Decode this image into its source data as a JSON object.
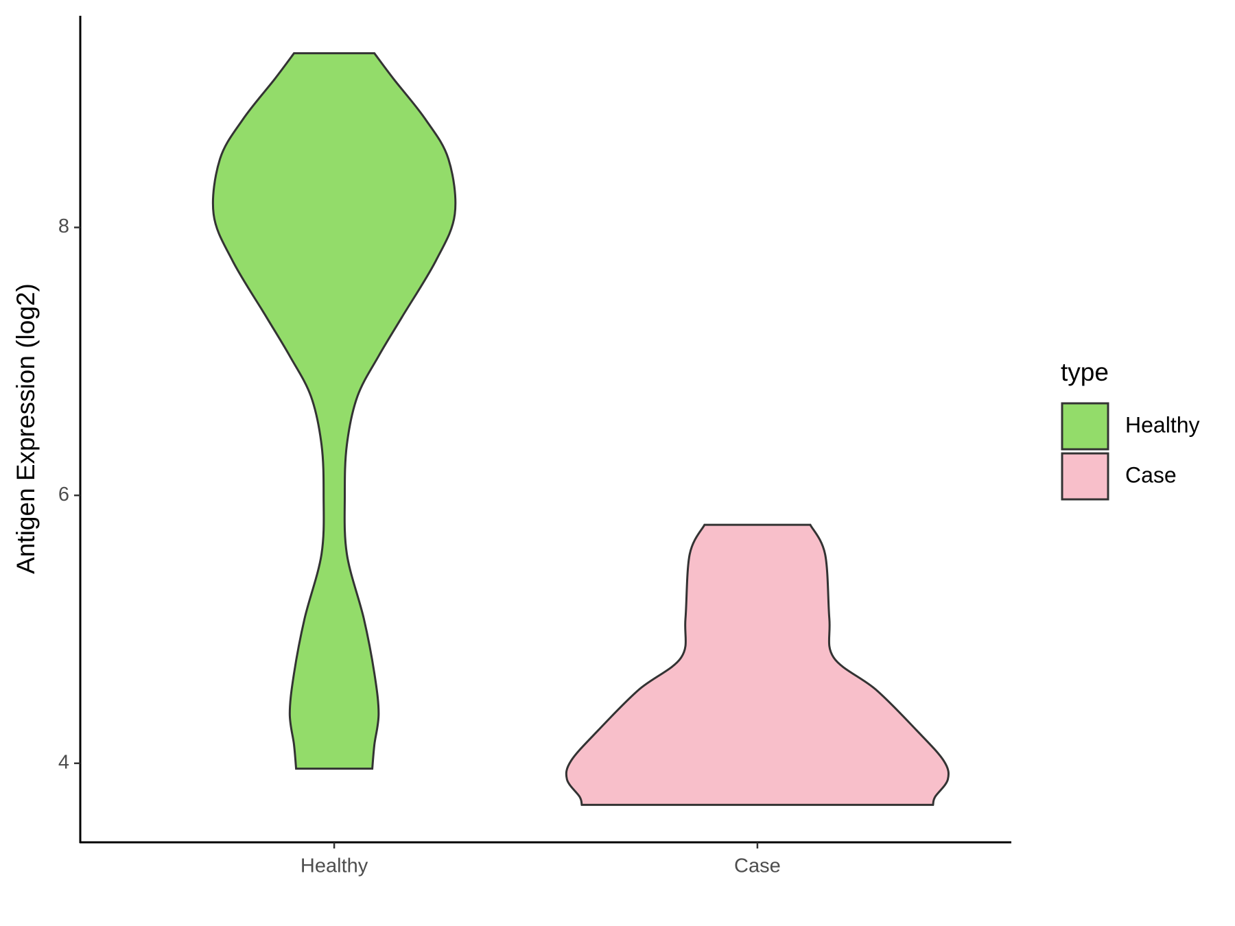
{
  "chart_data": {
    "type": "violin",
    "y_label": "Antigen Expression (log2)",
    "legend_title": "type",
    "categories": [
      "Healthy",
      "Case"
    ],
    "series": [
      {
        "name": "Healthy",
        "color": "#93dc6a",
        "y": [
          9.3,
          9.11,
          8.81,
          8.51,
          8.1,
          7.75,
          7.33,
          7.04,
          6.74,
          6.38,
          6.0,
          5.56,
          5.08,
          4.67,
          4.37,
          4.14,
          3.96
        ],
        "widths": [
          0.19,
          0.28,
          0.43,
          0.54,
          0.57,
          0.48,
          0.32,
          0.21,
          0.11,
          0.06,
          0.05,
          0.06,
          0.14,
          0.19,
          0.21,
          0.19,
          0.18
        ]
      },
      {
        "name": "Case",
        "color": "#f8bfca",
        "y": [
          5.78,
          5.56,
          5.08,
          4.79,
          4.55,
          4.25,
          4.02,
          3.88,
          3.75,
          3.69
        ],
        "widths": [
          0.25,
          0.32,
          0.34,
          0.36,
          0.56,
          0.75,
          0.88,
          0.9,
          0.84,
          0.83
        ]
      }
    ],
    "ylim": [
      3.41,
      9.58
    ],
    "yticks": [
      4,
      6,
      8
    ],
    "legend": "right",
    "grid": false
  }
}
